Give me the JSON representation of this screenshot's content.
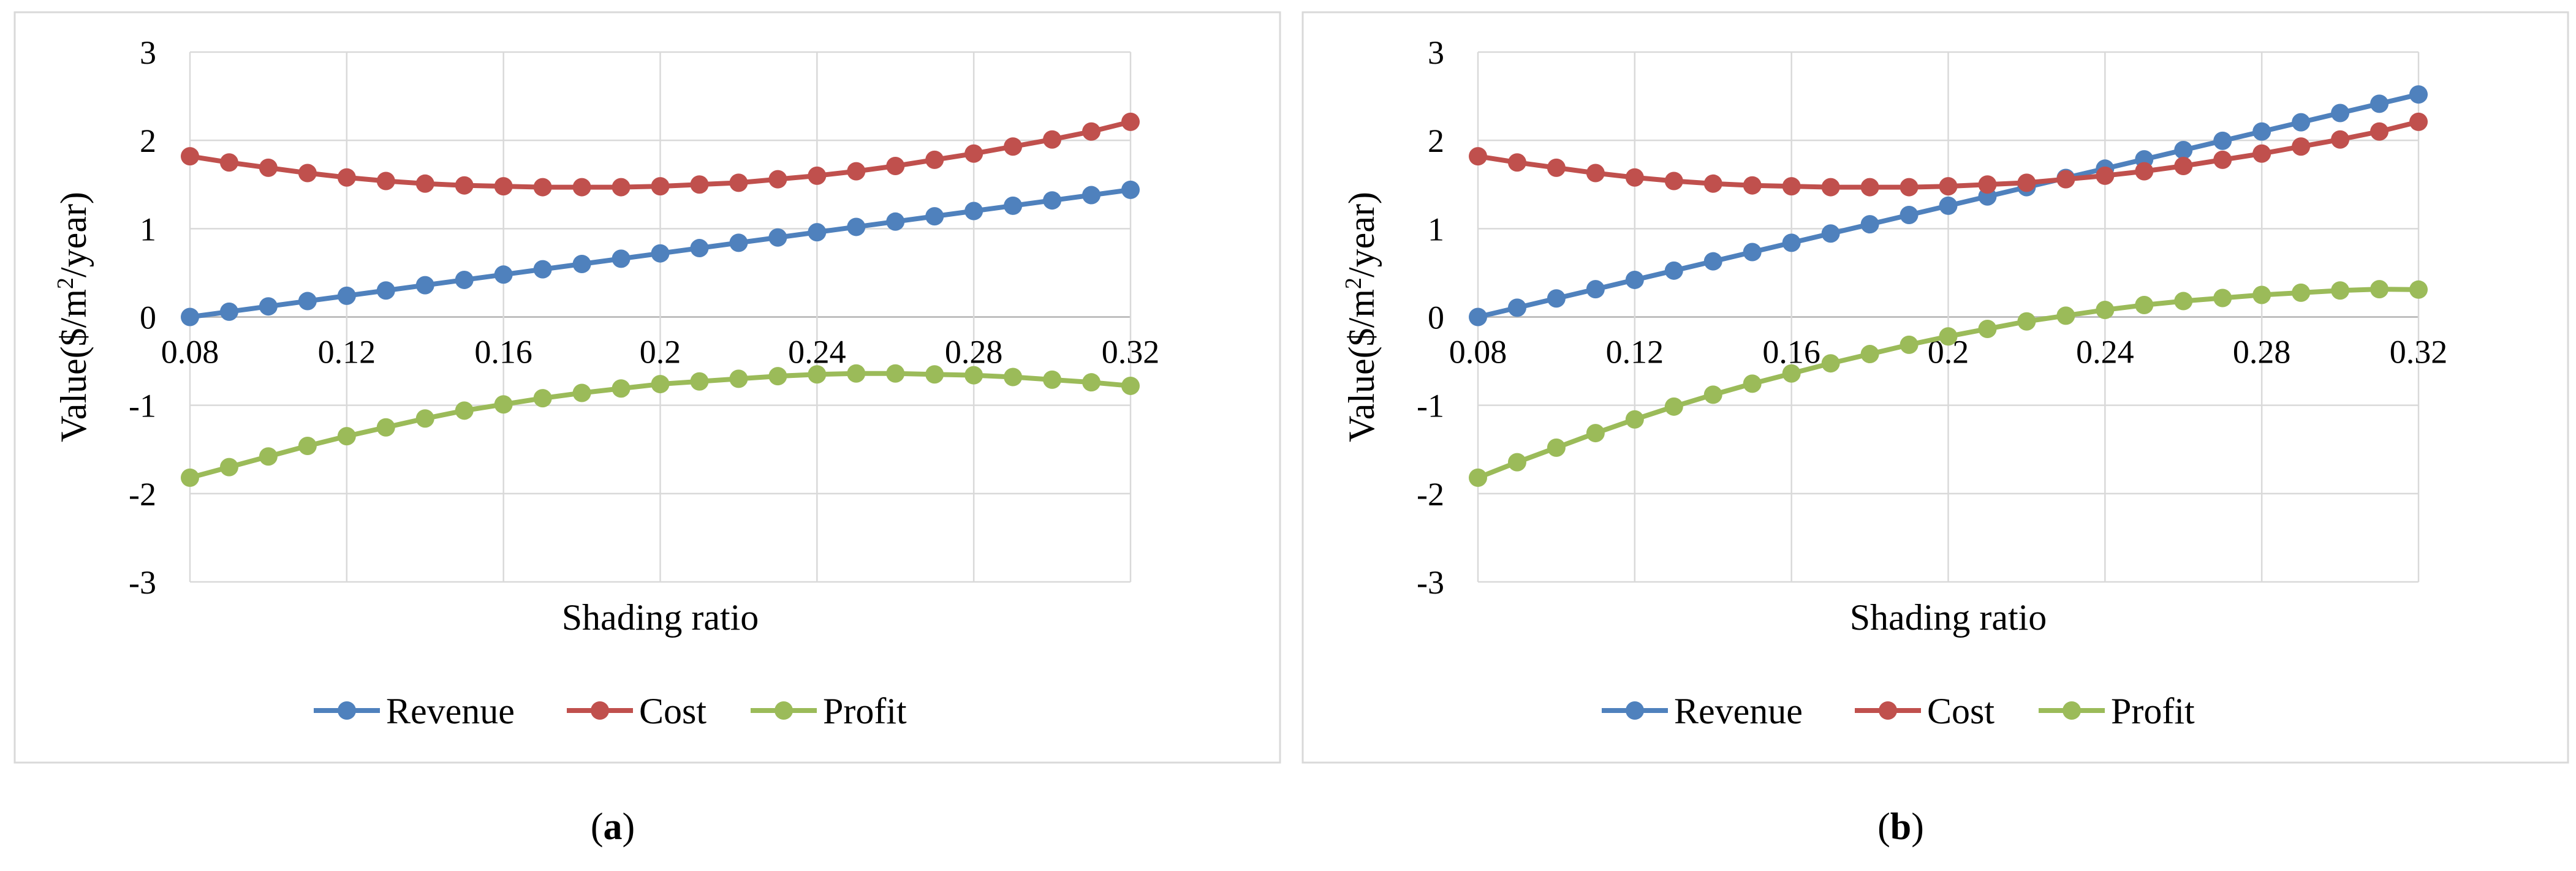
{
  "chart_data": [
    {
      "type": "line",
      "panel_label": "a",
      "xlabel": "Shading ratio",
      "ylabel_main": "Value($/m",
      "ylabel_sup": "2",
      "ylabel_tail": "/year)",
      "ylim": [
        -3,
        3
      ],
      "yticks": [
        "-3",
        "-2",
        "-1",
        "0",
        "1",
        "2",
        "3"
      ],
      "xlim": [
        0.08,
        0.32
      ],
      "xticks": [
        "0.08",
        "0.12",
        "0.16",
        "0.2",
        "0.24",
        "0.28",
        "0.32"
      ],
      "x": [
        0.08,
        0.09,
        0.1,
        0.11,
        0.12,
        0.13,
        0.14,
        0.15,
        0.16,
        0.17,
        0.18,
        0.19,
        0.2,
        0.21,
        0.22,
        0.23,
        0.24,
        0.25,
        0.26,
        0.27,
        0.28,
        0.29,
        0.3,
        0.31,
        0.32
      ],
      "series": [
        {
          "name": "Revenue",
          "color": "#4f81bd",
          "values": [
            0.0,
            0.06,
            0.12,
            0.18,
            0.24,
            0.3,
            0.36,
            0.42,
            0.48,
            0.54,
            0.6,
            0.66,
            0.72,
            0.78,
            0.84,
            0.9,
            0.96,
            1.02,
            1.08,
            1.14,
            1.2,
            1.26,
            1.32,
            1.38,
            1.44
          ]
        },
        {
          "name": "Cost",
          "color": "#c0504d",
          "values": [
            1.82,
            1.75,
            1.69,
            1.63,
            1.58,
            1.54,
            1.51,
            1.49,
            1.48,
            1.47,
            1.47,
            1.47,
            1.48,
            1.5,
            1.52,
            1.56,
            1.6,
            1.65,
            1.71,
            1.78,
            1.85,
            1.93,
            2.01,
            2.1,
            2.21
          ]
        },
        {
          "name": "Profit",
          "color": "#9bbb59",
          "values": [
            -1.82,
            -1.7,
            -1.58,
            -1.46,
            -1.35,
            -1.25,
            -1.15,
            -1.06,
            -0.99,
            -0.92,
            -0.86,
            -0.81,
            -0.76,
            -0.73,
            -0.7,
            -0.67,
            -0.65,
            -0.64,
            -0.64,
            -0.65,
            -0.66,
            -0.68,
            -0.71,
            -0.74,
            -0.78
          ]
        }
      ]
    },
    {
      "type": "line",
      "panel_label": "b",
      "xlabel": "Shading ratio",
      "ylabel_main": "Value($/m",
      "ylabel_sup": "2",
      "ylabel_tail": "/year)",
      "ylim": [
        -3,
        3
      ],
      "yticks": [
        "-3",
        "-2",
        "-1",
        "0",
        "1",
        "2",
        "3"
      ],
      "xlim": [
        0.08,
        0.32
      ],
      "xticks": [
        "0.08",
        "0.12",
        "0.16",
        "0.2",
        "0.24",
        "0.28",
        "0.32"
      ],
      "x": [
        0.08,
        0.09,
        0.1,
        0.11,
        0.12,
        0.13,
        0.14,
        0.15,
        0.16,
        0.17,
        0.18,
        0.19,
        0.2,
        0.21,
        0.22,
        0.23,
        0.24,
        0.25,
        0.26,
        0.27,
        0.28,
        0.29,
        0.3,
        0.31,
        0.32
      ],
      "series": [
        {
          "name": "Revenue",
          "color": "#4f81bd",
          "values": [
            0.0,
            0.105,
            0.21,
            0.315,
            0.42,
            0.525,
            0.63,
            0.735,
            0.84,
            0.945,
            1.05,
            1.155,
            1.26,
            1.365,
            1.47,
            1.575,
            1.68,
            1.785,
            1.89,
            1.995,
            2.1,
            2.205,
            2.31,
            2.415,
            2.52
          ]
        },
        {
          "name": "Cost",
          "color": "#c0504d",
          "values": [
            1.82,
            1.75,
            1.69,
            1.63,
            1.58,
            1.54,
            1.51,
            1.49,
            1.48,
            1.47,
            1.47,
            1.47,
            1.48,
            1.5,
            1.52,
            1.56,
            1.6,
            1.65,
            1.71,
            1.78,
            1.85,
            1.93,
            2.01,
            2.1,
            2.21
          ]
        },
        {
          "name": "Profit",
          "color": "#9bbb59",
          "values": [
            -1.82,
            -1.645,
            -1.48,
            -1.315,
            -1.16,
            -1.015,
            -0.88,
            -0.755,
            -0.64,
            -0.525,
            -0.42,
            -0.315,
            -0.22,
            -0.135,
            -0.05,
            0.015,
            0.08,
            0.135,
            0.18,
            0.215,
            0.25,
            0.275,
            0.3,
            0.315,
            0.31
          ]
        }
      ]
    }
  ]
}
